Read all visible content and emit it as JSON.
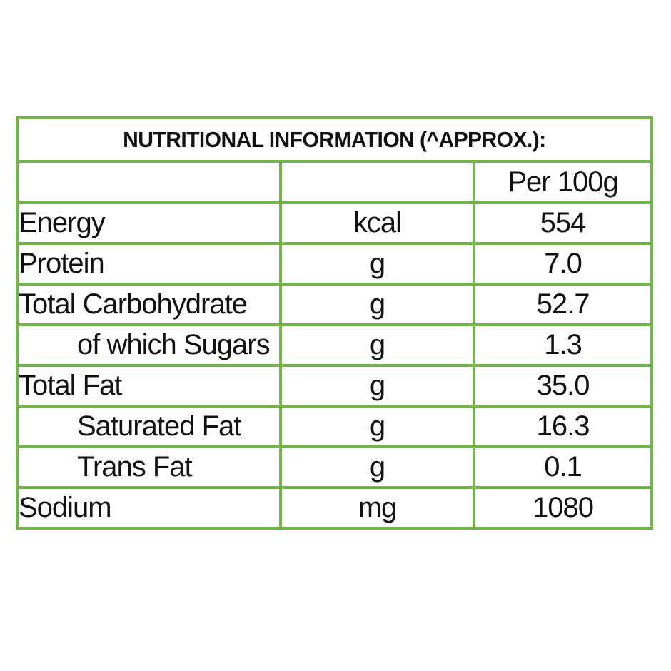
{
  "title": "NUTRITIONAL INFORMATION (^APPROX.):",
  "header": {
    "per_label": "Per 100g"
  },
  "rows": [
    {
      "label": "Energy",
      "unit": "kcal",
      "value": "554",
      "indent": false
    },
    {
      "label": "Protein",
      "unit": "g",
      "value": "7.0",
      "indent": false
    },
    {
      "label": "Total Carbohydrate",
      "unit": "g",
      "value": "52.7",
      "indent": false
    },
    {
      "label": "of which Sugars",
      "unit": "g",
      "value": "1.3",
      "indent": true
    },
    {
      "label": "Total Fat",
      "unit": "g",
      "value": "35.0",
      "indent": false
    },
    {
      "label": "Saturated Fat",
      "unit": "g",
      "value": "16.3",
      "indent": true
    },
    {
      "label": "Trans Fat",
      "unit": "g",
      "value": "0.1",
      "indent": true
    },
    {
      "label": "Sodium",
      "unit": "mg",
      "value": "1080",
      "indent": false
    }
  ],
  "colors": {
    "border": "#72b44a",
    "text": "#111111",
    "background": "#ffffff"
  }
}
